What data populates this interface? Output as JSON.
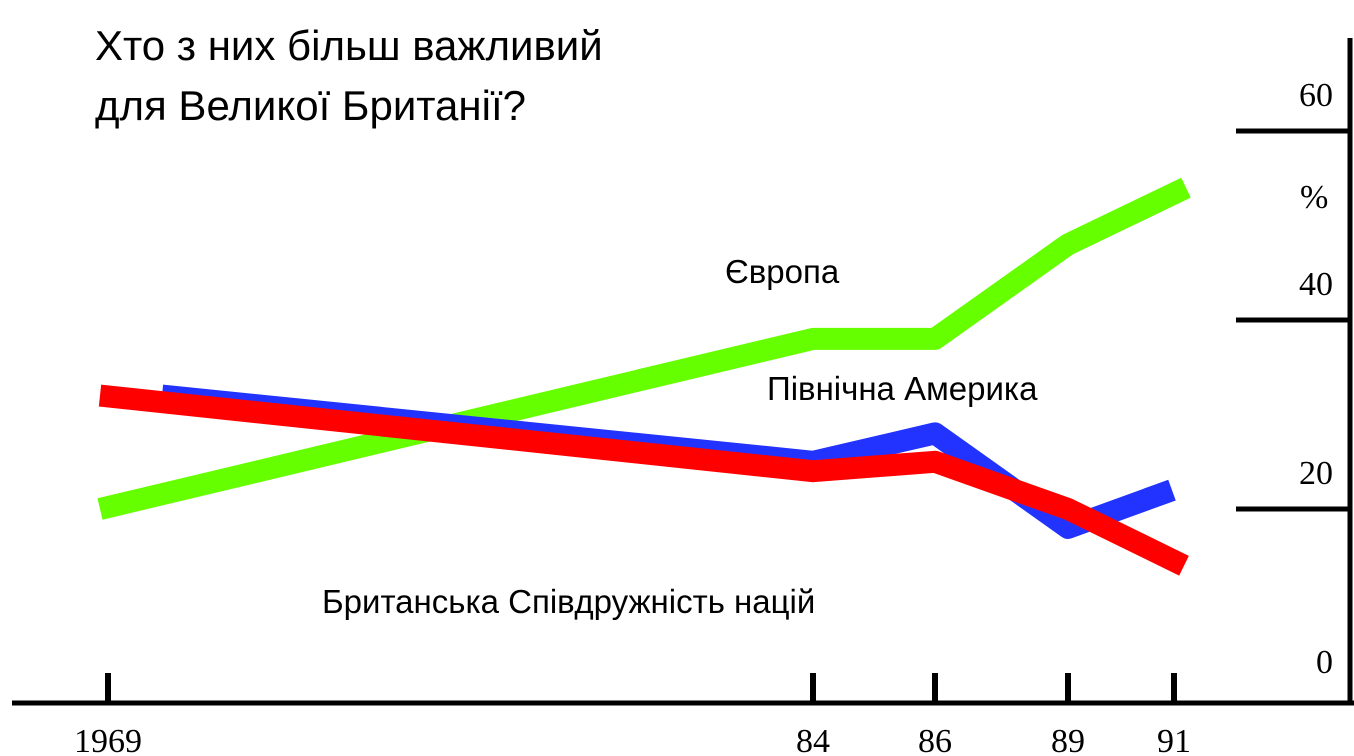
{
  "chart_data": {
    "type": "line",
    "title_lines": [
      "Хто з них більш важливий",
      "для Великої Британії?"
    ],
    "x": [
      1969,
      1984,
      1986,
      1989,
      1991
    ],
    "x_tick_labels": [
      "1969",
      "84",
      "86",
      "89",
      "91"
    ],
    "y_tick_labels": [
      "0",
      "20",
      "40",
      "60"
    ],
    "y_unit_label": "%",
    "ylim": [
      0,
      60
    ],
    "series": [
      {
        "name": "Європа",
        "color": "#66ff00",
        "values": [
          20,
          38,
          38,
          48,
          54
        ]
      },
      {
        "name": "Північна Америка",
        "color": "#2233ff",
        "values": [
          32,
          25,
          28,
          18,
          22
        ]
      },
      {
        "name": "Британська Співдружність націй",
        "color": "#ff0000",
        "values": [
          32,
          24,
          25,
          20,
          14
        ]
      }
    ]
  }
}
